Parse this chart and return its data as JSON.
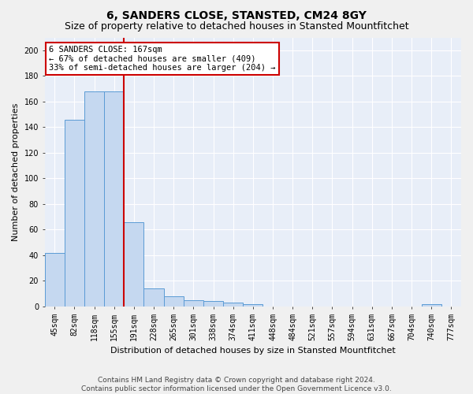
{
  "title": "6, SANDERS CLOSE, STANSTED, CM24 8GY",
  "subtitle": "Size of property relative to detached houses in Stansted Mountfitchet",
  "xlabel": "Distribution of detached houses by size in Stansted Mountfitchet",
  "ylabel": "Number of detached properties",
  "footer_line1": "Contains HM Land Registry data © Crown copyright and database right 2024.",
  "footer_line2": "Contains public sector information licensed under the Open Government Licence v3.0.",
  "categories": [
    "45sqm",
    "82sqm",
    "118sqm",
    "155sqm",
    "191sqm",
    "228sqm",
    "265sqm",
    "301sqm",
    "338sqm",
    "374sqm",
    "411sqm",
    "448sqm",
    "484sqm",
    "521sqm",
    "557sqm",
    "594sqm",
    "631sqm",
    "667sqm",
    "704sqm",
    "740sqm",
    "777sqm"
  ],
  "values": [
    42,
    146,
    168,
    168,
    66,
    14,
    8,
    5,
    4,
    3,
    2,
    0,
    0,
    0,
    0,
    0,
    0,
    0,
    0,
    2,
    0
  ],
  "bar_color": "#c5d8f0",
  "bar_edge_color": "#5b9bd5",
  "ylim": [
    0,
    210
  ],
  "yticks": [
    0,
    20,
    40,
    60,
    80,
    100,
    120,
    140,
    160,
    180,
    200
  ],
  "property_label": "6 SANDERS CLOSE: 167sqm",
  "annotation_line1": "← 67% of detached houses are smaller (409)",
  "annotation_line2": "33% of semi-detached houses are larger (204) →",
  "annotation_box_color": "#ffffff",
  "annotation_box_edge": "#cc0000",
  "vline_color": "#cc0000",
  "vline_x": 3.5,
  "bg_color": "#e8eef8",
  "grid_color": "#ffffff",
  "title_fontsize": 10,
  "subtitle_fontsize": 9,
  "axis_label_fontsize": 8,
  "tick_fontsize": 7,
  "annotation_fontsize": 7.5,
  "footer_fontsize": 6.5
}
